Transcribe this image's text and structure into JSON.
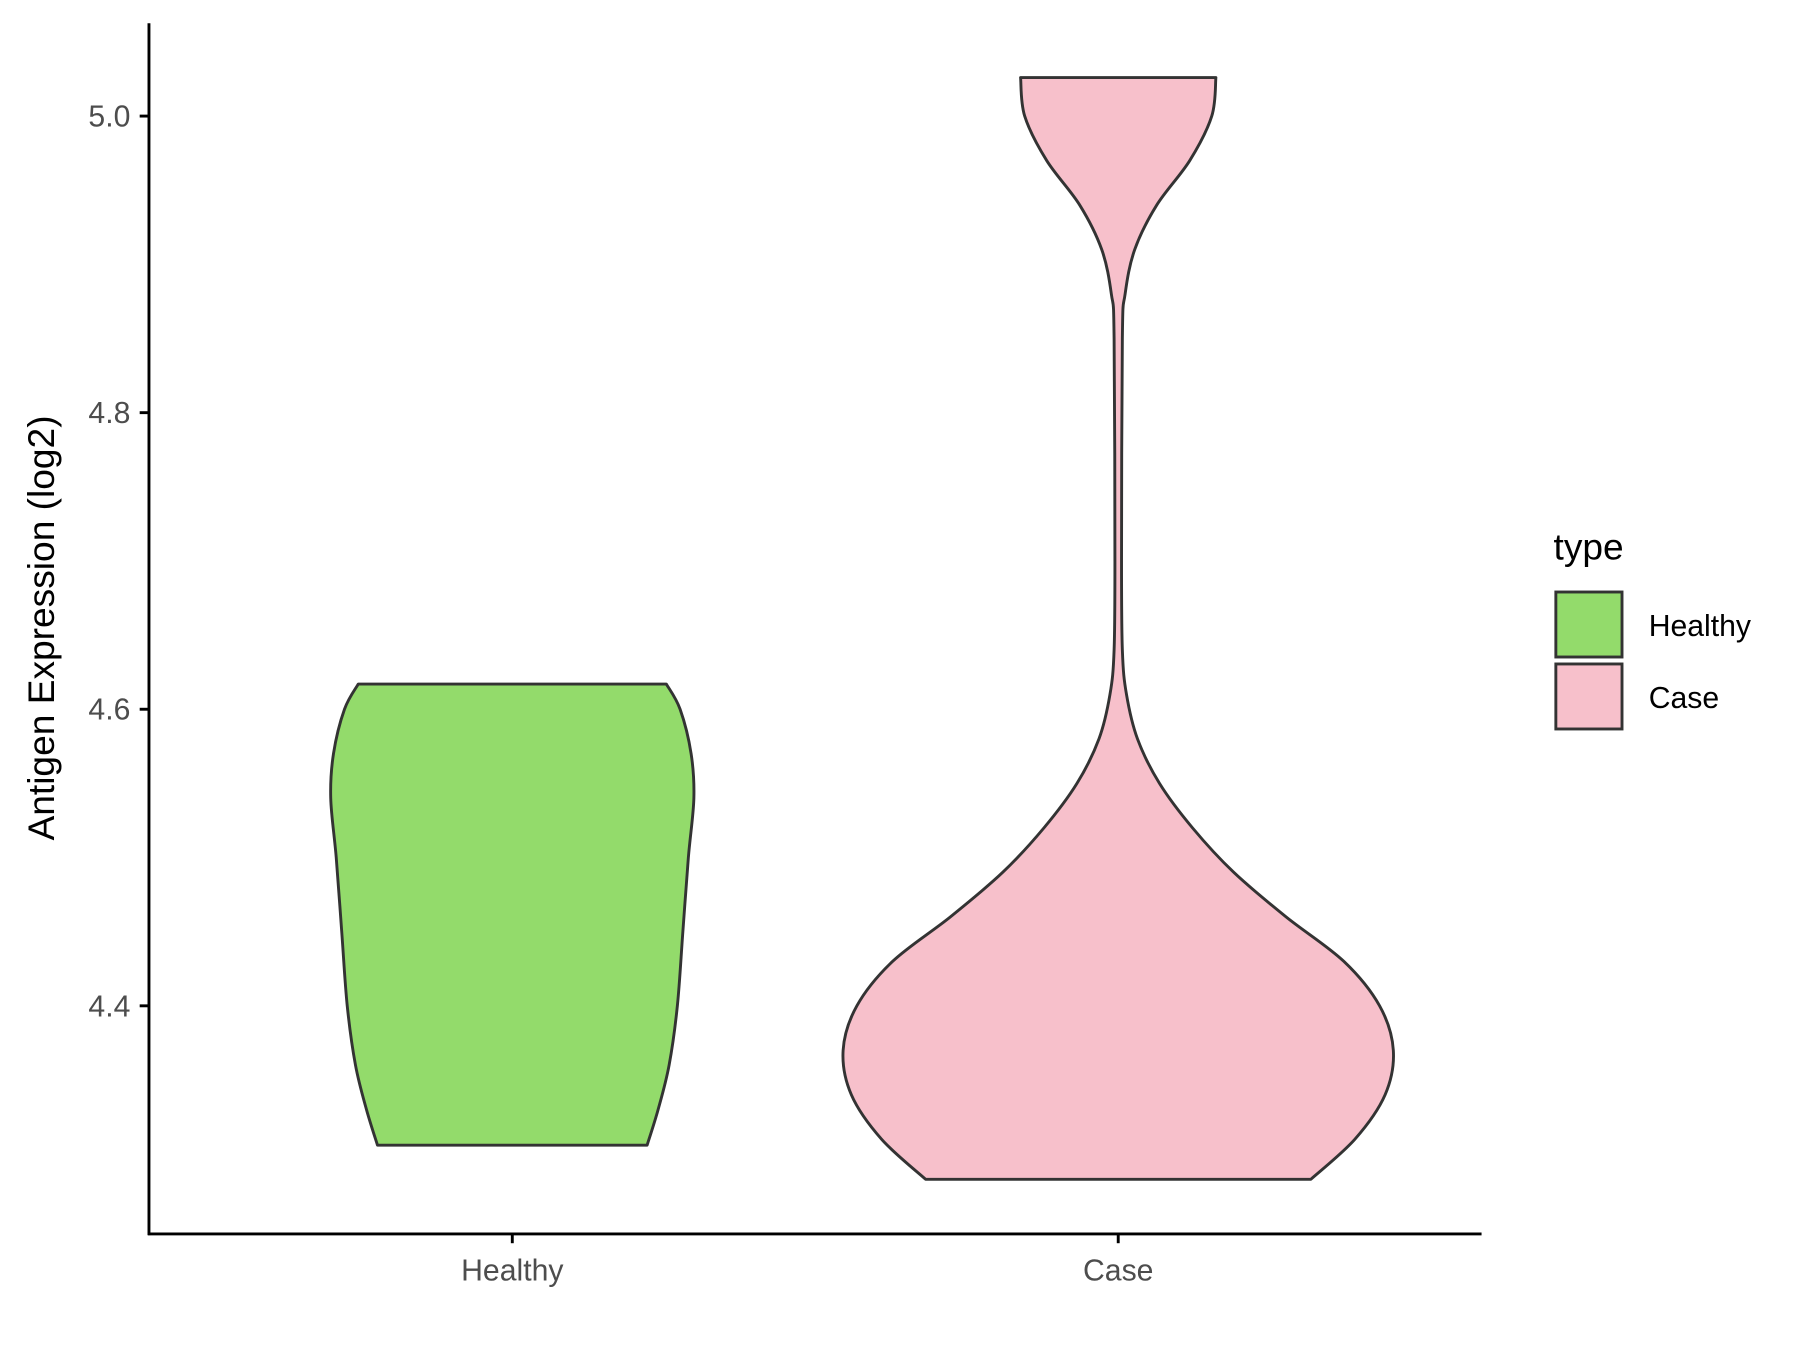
{
  "chart_data": {
    "type": "violin",
    "title": "",
    "xlabel": "",
    "ylabel": "Antigen Expression (log2)",
    "ylim": [
      4.26,
      5.06
    ],
    "yticks": [
      4.4,
      4.6,
      4.8,
      5.0
    ],
    "ytick_labels": [
      "4.4",
      "4.6",
      "4.8",
      "5.0"
    ],
    "categories": [
      "Healthy",
      "Case"
    ],
    "grid": false,
    "legend": {
      "title": "type",
      "position": "right",
      "entries": [
        "Healthy",
        "Case"
      ]
    },
    "series": [
      {
        "name": "Healthy",
        "color": "#93DB6B",
        "min": 4.306,
        "max": 4.617,
        "density_profile": [
          [
            4.617,
            0.56
          ],
          [
            4.6,
            0.61
          ],
          [
            4.57,
            0.65
          ],
          [
            4.54,
            0.66
          ],
          [
            4.5,
            0.64
          ],
          [
            4.45,
            0.62
          ],
          [
            4.4,
            0.6
          ],
          [
            4.36,
            0.57
          ],
          [
            4.33,
            0.53
          ],
          [
            4.306,
            0.49
          ]
        ]
      },
      {
        "name": "Case",
        "color": "#F7C0CB",
        "min": 4.283,
        "max": 5.026,
        "density_profile": [
          [
            5.026,
            0.355
          ],
          [
            5.0,
            0.34
          ],
          [
            4.97,
            0.26
          ],
          [
            4.94,
            0.14
          ],
          [
            4.91,
            0.06
          ],
          [
            4.88,
            0.025
          ],
          [
            4.85,
            0.015
          ],
          [
            4.7,
            0.012
          ],
          [
            4.64,
            0.015
          ],
          [
            4.61,
            0.03
          ],
          [
            4.58,
            0.07
          ],
          [
            4.55,
            0.15
          ],
          [
            4.52,
            0.27
          ],
          [
            4.49,
            0.42
          ],
          [
            4.46,
            0.61
          ],
          [
            4.43,
            0.82
          ],
          [
            4.4,
            0.95
          ],
          [
            4.37,
            1.0
          ],
          [
            4.34,
            0.97
          ],
          [
            4.31,
            0.86
          ],
          [
            4.283,
            0.7
          ]
        ]
      }
    ]
  }
}
